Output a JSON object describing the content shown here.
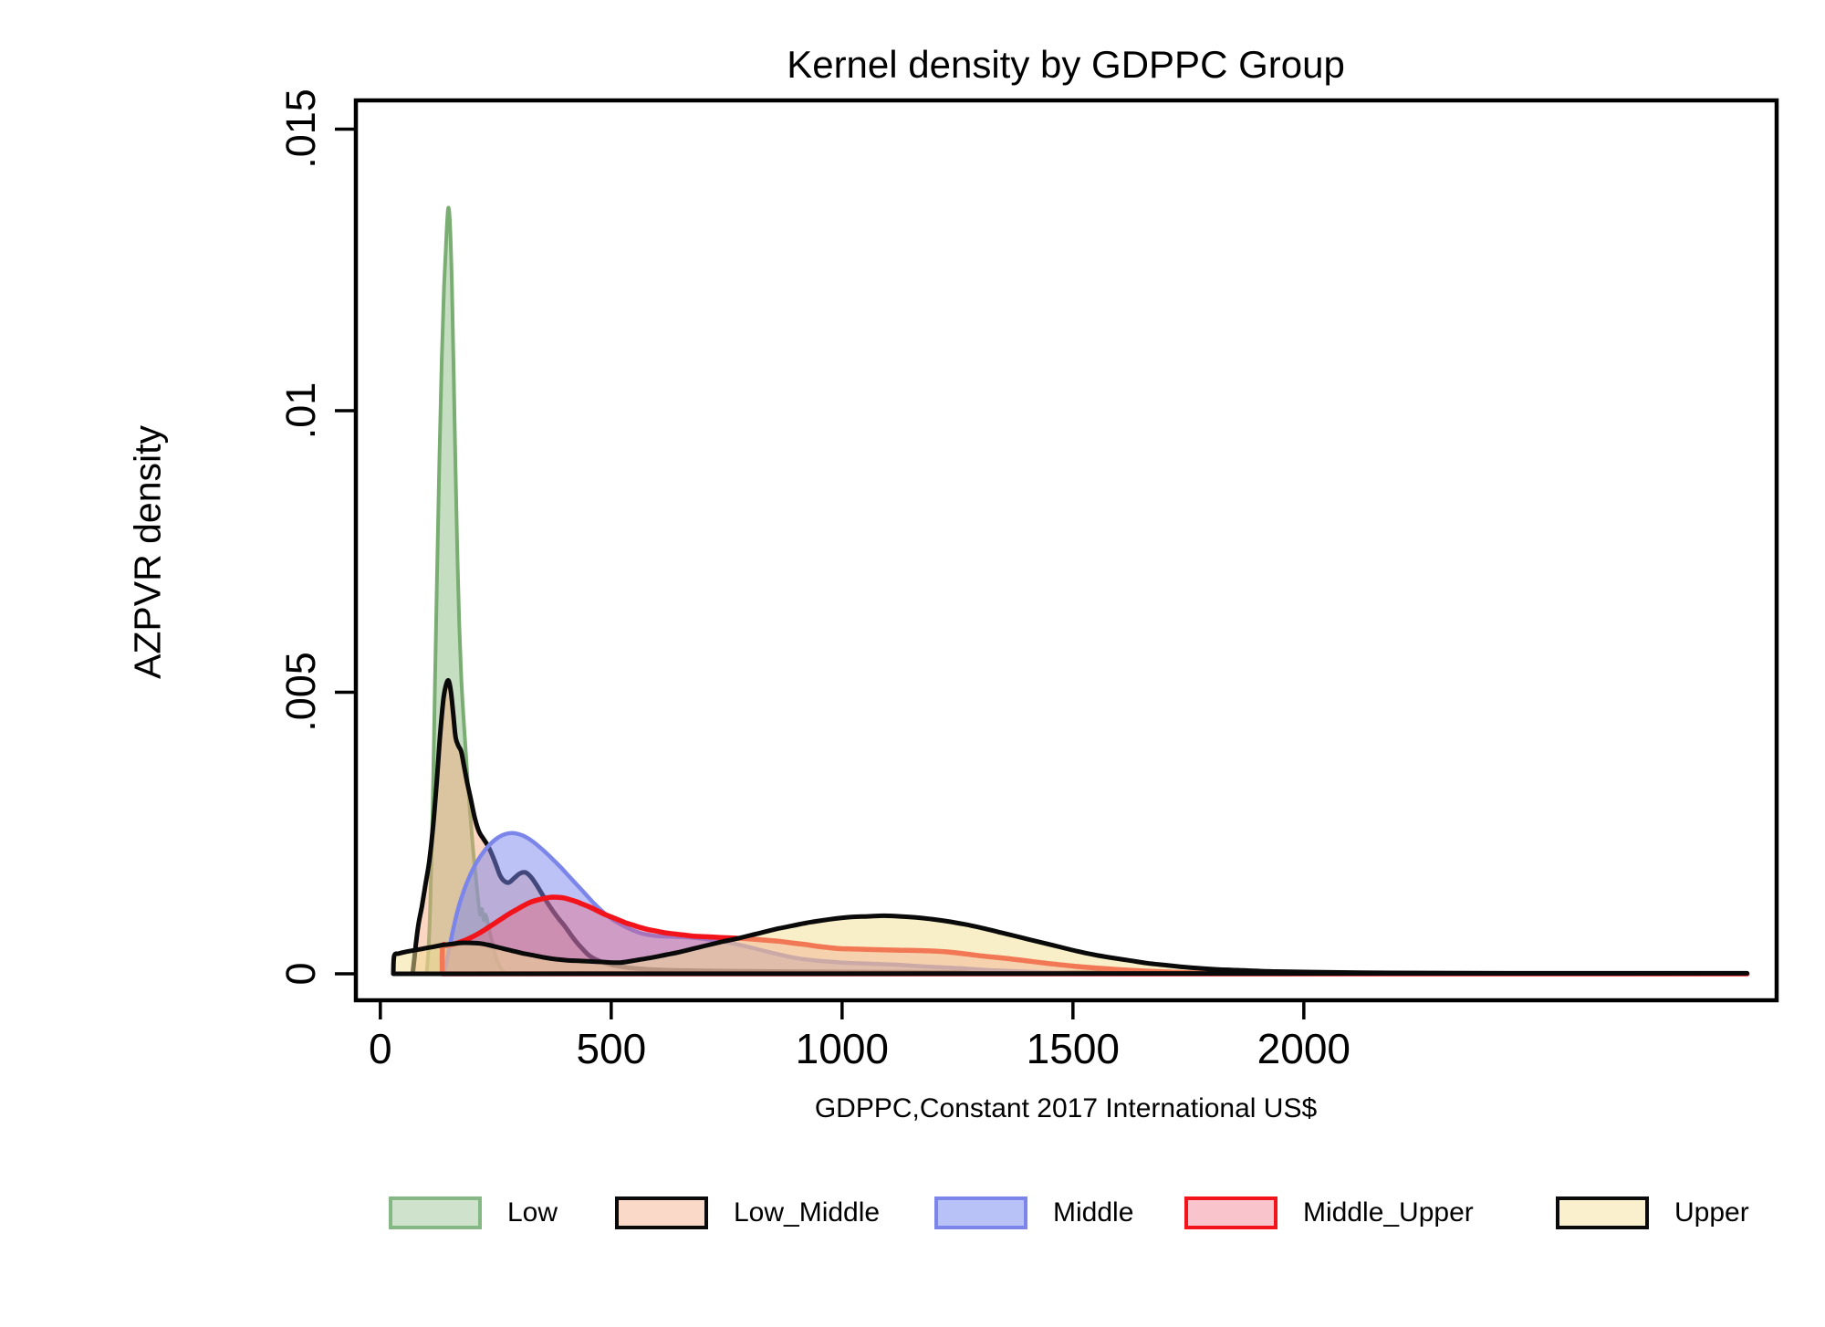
{
  "chart_data": {
    "type": "area",
    "subtype": "kernel-density",
    "title": "Kernel density by GDPPC Group",
    "xlabel": "GDPPC,Constant 2017 International US$",
    "ylabel": "AZPVR density",
    "xlim": [
      -53,
      3024
    ],
    "ylim": [
      -0.00047,
      0.01551
    ],
    "grid": false,
    "legend_position": "bottom",
    "frame_color": "#000000",
    "x_ticks": {
      "values": [
        0,
        500,
        1000,
        1500,
        2000
      ],
      "labels": [
        "0",
        "500",
        "1000",
        "1500",
        "2000"
      ]
    },
    "y_ticks": {
      "values": [
        0,
        0.005,
        0.01,
        0.015
      ],
      "labels": [
        "0",
        ".005",
        ".01",
        ".015"
      ]
    },
    "series": [
      {
        "name": "low",
        "label": "Low",
        "stroke": "#79ad72",
        "stroke_width": 4,
        "fill": "#74b06e",
        "fill_opacity": 0.42,
        "legend_fill": "#cfe3cc",
        "legend_border": "#86b886",
        "points": [
          [
            100,
            0
          ],
          [
            104,
            0.0004
          ],
          [
            108,
            0.0012
          ],
          [
            113,
            0.0028
          ],
          [
            118,
            0.005
          ],
          [
            123,
            0.0072
          ],
          [
            128,
            0.0092
          ],
          [
            133,
            0.0109
          ],
          [
            138,
            0.0122
          ],
          [
            143,
            0.0131
          ],
          [
            147,
            0.0136
          ],
          [
            151,
            0.0133
          ],
          [
            155,
            0.0122
          ],
          [
            159,
            0.0106
          ],
          [
            163,
            0.0089
          ],
          [
            167,
            0.0074
          ],
          [
            171,
            0.0062
          ],
          [
            175,
            0.0053
          ],
          [
            179,
            0.0047
          ],
          [
            183,
            0.0042
          ],
          [
            187,
            0.0037
          ],
          [
            192,
            0.0031
          ],
          [
            197,
            0.0026
          ],
          [
            202,
            0.0021
          ],
          [
            207,
            0.0017
          ],
          [
            212,
            0.0013
          ],
          [
            216,
            0.00105
          ],
          [
            220,
            0.00115
          ],
          [
            224,
            0.00095
          ],
          [
            228,
            0.00105
          ],
          [
            233,
            0.0009
          ],
          [
            238,
            0.0007
          ],
          [
            244,
            0.0005
          ],
          [
            250,
            0.0003
          ],
          [
            257,
            0.00015
          ],
          [
            264,
            6e-05
          ],
          [
            272,
            0
          ]
        ]
      },
      {
        "name": "low_middle",
        "label": "Low_Middle",
        "stroke": "#0a0a0a",
        "stroke_width": 5,
        "fill": "#f6a67b",
        "fill_opacity": 0.45,
        "legend_fill": "#fbd9c8",
        "legend_border": "#0a0a0a",
        "points": [
          [
            70,
            0
          ],
          [
            74,
            0.0003
          ],
          [
            78,
            0.0006
          ],
          [
            83,
            0.0009
          ],
          [
            90,
            0.0012
          ],
          [
            98,
            0.0016
          ],
          [
            106,
            0.002
          ],
          [
            114,
            0.0026
          ],
          [
            122,
            0.0034
          ],
          [
            130,
            0.0043
          ],
          [
            137,
            0.0049
          ],
          [
            143,
            0.00515
          ],
          [
            148,
            0.0052
          ],
          [
            153,
            0.005
          ],
          [
            158,
            0.0046
          ],
          [
            163,
            0.0042
          ],
          [
            169,
            0.00405
          ],
          [
            175,
            0.00395
          ],
          [
            181,
            0.0037
          ],
          [
            188,
            0.0034
          ],
          [
            196,
            0.0031
          ],
          [
            205,
            0.00275
          ],
          [
            214,
            0.00252
          ],
          [
            223,
            0.0024
          ],
          [
            231,
            0.0023
          ],
          [
            240,
            0.00215
          ],
          [
            250,
            0.00195
          ],
          [
            259,
            0.00175
          ],
          [
            268,
            0.00165
          ],
          [
            278,
            0.00162
          ],
          [
            290,
            0.0017
          ],
          [
            302,
            0.00178
          ],
          [
            314,
            0.0018
          ],
          [
            326,
            0.00172
          ],
          [
            338,
            0.00158
          ],
          [
            350,
            0.00142
          ],
          [
            362,
            0.00126
          ],
          [
            375,
            0.0011
          ],
          [
            388,
            0.00096
          ],
          [
            400,
            0.00084
          ],
          [
            412,
            0.0007
          ],
          [
            424,
            0.00057
          ],
          [
            436,
            0.00046
          ],
          [
            450,
            0.00034
          ],
          [
            465,
            0.00026
          ],
          [
            480,
            0.00021
          ],
          [
            500,
            0.00016
          ],
          [
            520,
            0.00013
          ],
          [
            545,
            0.0001
          ],
          [
            580,
            8e-05
          ],
          [
            640,
            6e-05
          ],
          [
            720,
            5e-05
          ],
          [
            850,
            4e-05
          ],
          [
            1050,
            3e-05
          ],
          [
            1350,
            2e-05
          ],
          [
            1700,
            1.5e-05
          ],
          [
            2200,
            1e-05
          ],
          [
            2960,
            0
          ]
        ]
      },
      {
        "name": "middle",
        "label": "Middle",
        "stroke": "#7c85ea",
        "stroke_width": 4.5,
        "fill": "#7a86ee",
        "fill_opacity": 0.5,
        "legend_fill": "#b9c2f7",
        "legend_border": "#7c85ea",
        "points": [
          [
            138,
            0
          ],
          [
            148,
            0.0004
          ],
          [
            158,
            0.0008
          ],
          [
            170,
            0.0012
          ],
          [
            182,
            0.0015
          ],
          [
            196,
            0.00178
          ],
          [
            210,
            0.002
          ],
          [
            225,
            0.00218
          ],
          [
            240,
            0.00232
          ],
          [
            255,
            0.00242
          ],
          [
            270,
            0.00248
          ],
          [
            285,
            0.0025
          ],
          [
            300,
            0.00248
          ],
          [
            315,
            0.00243
          ],
          [
            330,
            0.00235
          ],
          [
            345,
            0.00225
          ],
          [
            360,
            0.00214
          ],
          [
            375,
            0.00202
          ],
          [
            392,
            0.00188
          ],
          [
            410,
            0.00172
          ],
          [
            428,
            0.00156
          ],
          [
            446,
            0.0014
          ],
          [
            464,
            0.00124
          ],
          [
            482,
            0.0011
          ],
          [
            500,
            0.00098
          ],
          [
            520,
            0.00088
          ],
          [
            545,
            0.00078
          ],
          [
            570,
            0.00071
          ],
          [
            600,
            0.00067
          ],
          [
            630,
            0.00066
          ],
          [
            660,
            0.00065
          ],
          [
            690,
            0.00063
          ],
          [
            720,
            0.0006
          ],
          [
            750,
            0.00056
          ],
          [
            785,
            0.0005
          ],
          [
            820,
            0.00043
          ],
          [
            860,
            0.00035
          ],
          [
            900,
            0.00028
          ],
          [
            950,
            0.00023
          ],
          [
            1000,
            0.0002
          ],
          [
            1060,
            0.00018
          ],
          [
            1120,
            0.00016
          ],
          [
            1180,
            0.00013
          ],
          [
            1250,
            0.0001
          ],
          [
            1330,
            6e-05
          ],
          [
            1420,
            3e-05
          ],
          [
            1520,
            1e-05
          ],
          [
            1620,
            0
          ]
        ]
      },
      {
        "name": "middle_upper",
        "label": "Middle_Upper",
        "stroke": "#f2131b",
        "stroke_width": 5.5,
        "fill": "#f2566b",
        "fill_opacity": 0.35,
        "legend_fill": "#f9c4cb",
        "legend_border": "#f2131b",
        "points": [
          [
            134,
            0
          ],
          [
            135,
            0.00048
          ],
          [
            145,
            0.0005
          ],
          [
            160,
            0.00053
          ],
          [
            175,
            0.00057
          ],
          [
            190,
            0.00062
          ],
          [
            205,
            0.00068
          ],
          [
            220,
            0.00075
          ],
          [
            235,
            0.00083
          ],
          [
            250,
            0.00091
          ],
          [
            265,
            0.00099
          ],
          [
            280,
            0.00107
          ],
          [
            295,
            0.00114
          ],
          [
            310,
            0.00121
          ],
          [
            325,
            0.00127
          ],
          [
            340,
            0.00131
          ],
          [
            355,
            0.00134
          ],
          [
            370,
            0.00136
          ],
          [
            382,
            0.00136
          ],
          [
            395,
            0.00135
          ],
          [
            410,
            0.00132
          ],
          [
            425,
            0.00128
          ],
          [
            440,
            0.00123
          ],
          [
            455,
            0.00118
          ],
          [
            470,
            0.00112
          ],
          [
            485,
            0.00106
          ],
          [
            500,
            0.00101
          ],
          [
            515,
            0.00096
          ],
          [
            530,
            0.00091
          ],
          [
            545,
            0.00087
          ],
          [
            560,
            0.00083
          ],
          [
            578,
            0.00079
          ],
          [
            596,
            0.00076
          ],
          [
            615,
            0.00073
          ],
          [
            635,
            0.00071
          ],
          [
            655,
            0.00069
          ],
          [
            678,
            0.00067
          ],
          [
            700,
            0.00066
          ],
          [
            725,
            0.00065
          ],
          [
            750,
            0.00064
          ],
          [
            775,
            0.00063
          ],
          [
            800,
            0.00062
          ],
          [
            830,
            0.0006
          ],
          [
            860,
            0.00058
          ],
          [
            890,
            0.00055
          ],
          [
            920,
            0.00052
          ],
          [
            955,
            0.00048
          ],
          [
            990,
            0.00045
          ],
          [
            1030,
            0.00044
          ],
          [
            1070,
            0.00043
          ],
          [
            1120,
            0.00042
          ],
          [
            1180,
            0.00041
          ],
          [
            1240,
            0.00038
          ],
          [
            1300,
            0.00032
          ],
          [
            1370,
            0.00026
          ],
          [
            1440,
            0.00019
          ],
          [
            1510,
            0.00013
          ],
          [
            1590,
            8e-05
          ],
          [
            1680,
            4e-05
          ],
          [
            1800,
            1e-05
          ],
          [
            1950,
            0
          ],
          [
            2960,
            0
          ]
        ]
      },
      {
        "name": "upper",
        "label": "Upper",
        "stroke": "#0a0a0a",
        "stroke_width": 5,
        "fill": "#f2dd8f",
        "fill_opacity": 0.5,
        "legend_fill": "#faf0cd",
        "legend_border": "#0a0a0a",
        "points": [
          [
            28,
            0
          ],
          [
            30,
            0.00032
          ],
          [
            40,
            0.00036
          ],
          [
            55,
            0.00039
          ],
          [
            75,
            0.00042
          ],
          [
            95,
            0.00045
          ],
          [
            115,
            0.00048
          ],
          [
            135,
            0.00051
          ],
          [
            155,
            0.00053
          ],
          [
            175,
            0.00055
          ],
          [
            195,
            0.00055
          ],
          [
            215,
            0.00054
          ],
          [
            235,
            0.00051
          ],
          [
            255,
            0.00047
          ],
          [
            280,
            0.00042
          ],
          [
            305,
            0.00037
          ],
          [
            330,
            0.00033
          ],
          [
            355,
            0.00029
          ],
          [
            380,
            0.00026
          ],
          [
            405,
            0.00024
          ],
          [
            430,
            0.00023
          ],
          [
            455,
            0.00022
          ],
          [
            480,
            0.00021
          ],
          [
            520,
            0.0002
          ],
          [
            560,
            0.00025
          ],
          [
            590,
            0.00029
          ],
          [
            620,
            0.00034
          ],
          [
            650,
            0.00039
          ],
          [
            680,
            0.00045
          ],
          [
            710,
            0.00051
          ],
          [
            740,
            0.00057
          ],
          [
            770,
            0.00062
          ],
          [
            800,
            0.00068
          ],
          [
            830,
            0.00074
          ],
          [
            860,
            0.0008
          ],
          [
            890,
            0.00085
          ],
          [
            920,
            0.0009
          ],
          [
            950,
            0.00094
          ],
          [
            985,
            0.00098
          ],
          [
            1020,
            0.00101
          ],
          [
            1055,
            0.00102
          ],
          [
            1090,
            0.00103
          ],
          [
            1125,
            0.00102
          ],
          [
            1160,
            0.001
          ],
          [
            1195,
            0.00097
          ],
          [
            1230,
            0.00093
          ],
          [
            1265,
            0.00088
          ],
          [
            1300,
            0.00082
          ],
          [
            1335,
            0.00075
          ],
          [
            1370,
            0.00068
          ],
          [
            1405,
            0.00061
          ],
          [
            1440,
            0.00054
          ],
          [
            1475,
            0.00047
          ],
          [
            1510,
            0.0004
          ],
          [
            1545,
            0.00034
          ],
          [
            1580,
            0.00029
          ],
          [
            1620,
            0.00024
          ],
          [
            1660,
            0.00019
          ],
          [
            1705,
            0.00015
          ],
          [
            1755,
            0.00011
          ],
          [
            1810,
            8e-05
          ],
          [
            1870,
            6e-05
          ],
          [
            1940,
            4e-05
          ],
          [
            2020,
            3e-05
          ],
          [
            2120,
            2e-05
          ],
          [
            2260,
            1.5e-05
          ],
          [
            2450,
            1e-05
          ],
          [
            2700,
            1e-05
          ],
          [
            2960,
            1e-05
          ]
        ]
      }
    ],
    "legend": {
      "items": [
        {
          "label": "Low"
        },
        {
          "label": "Low_Middle"
        },
        {
          "label": "Middle"
        },
        {
          "label": "Middle_Upper"
        },
        {
          "label": "Upper"
        }
      ]
    }
  }
}
